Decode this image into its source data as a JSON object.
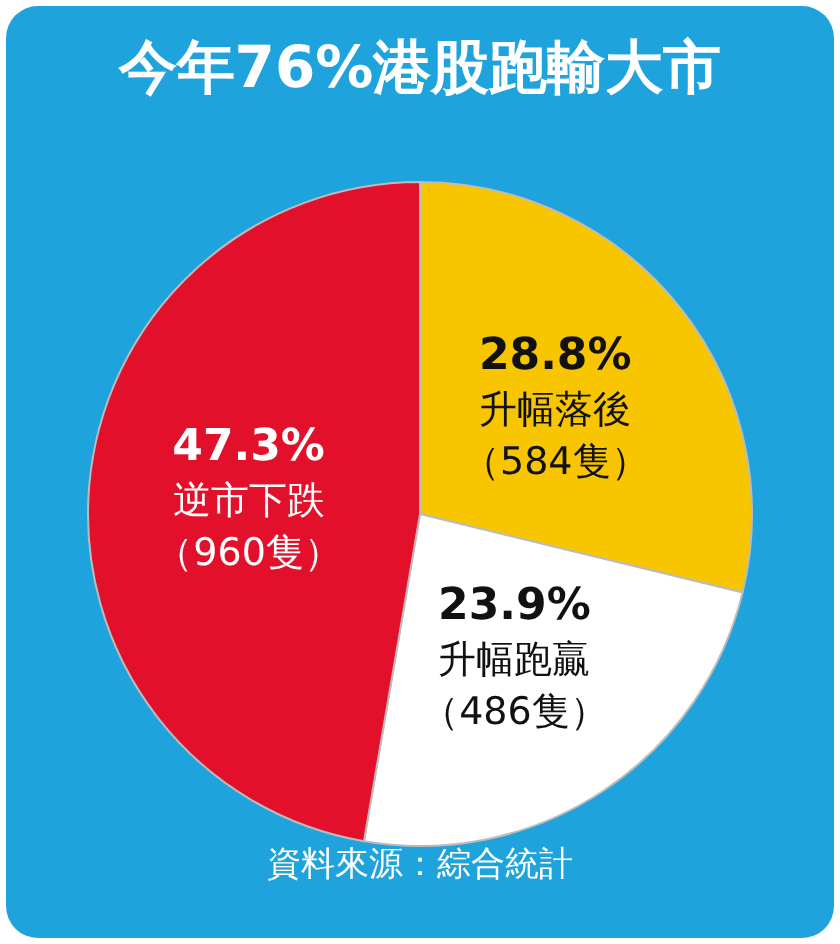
{
  "chart_data": {
    "type": "pie",
    "title": "今年76%港股跑輸大市",
    "categories": [
      "升幅落後（584隻）",
      "升幅跑贏（486隻）",
      "逆市下跌（960隻）"
    ],
    "values": [
      28.8,
      23.9,
      47.3
    ],
    "colors": [
      "#f7c600",
      "#ffffff",
      "#e3102b"
    ],
    "value_labels": [
      "28.8%",
      "23.9%",
      "47.3%"
    ],
    "legend": false,
    "annotations": [
      "資料來源：綜合統計"
    ]
  }
}
